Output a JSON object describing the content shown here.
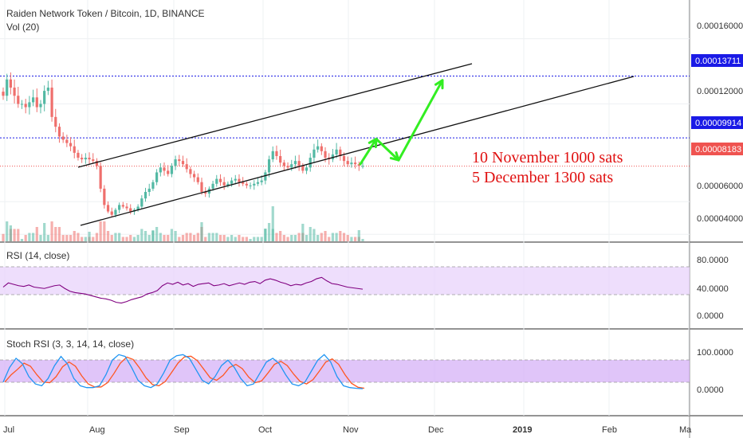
{
  "header": {
    "title": "Raiden Network Token / Bitcoin, 1D, BINANCE",
    "volume_label": "Vol (20)"
  },
  "colors": {
    "up": "#53b9a4",
    "down": "#ef6f6c",
    "level_line": "#1a1ae6",
    "price_badge": "#1a1ae6",
    "last_badge": "#ef5350",
    "rsi_line": "#800080",
    "rsi_band": "#e6ccff",
    "stoch_k": "#2196f3",
    "stoch_d": "#ff5722",
    "arrows": "#33ee22",
    "annotation": "#e01010"
  },
  "price_axis": {
    "ticks": [
      "0.00016000",
      "0.00012000",
      "0.00006000",
      "0.00004000"
    ],
    "tick_values": [
      0.00016,
      0.00012,
      6e-05,
      4e-05
    ]
  },
  "levels": [
    {
      "label": "0.00013711",
      "value": 0.00013711,
      "kind": "level"
    },
    {
      "label": "0.00009914",
      "value": 9.914e-05,
      "kind": "level"
    },
    {
      "label": "0.00008183",
      "value": 8.183e-05,
      "kind": "last"
    }
  ],
  "annotations": {
    "line1": "10 November 1000 sats",
    "line2": "5 December 1300 sats"
  },
  "rsi": {
    "label": "RSI (14, close)",
    "ticks": [
      "80.0000",
      "40.0000",
      "0.0000"
    ]
  },
  "stoch": {
    "label": "Stoch RSI (3, 3, 14, 14, close)",
    "ticks": [
      "100.0000",
      "0.0000"
    ]
  },
  "time_axis": {
    "labels": [
      "Jul",
      "Aug",
      "Sep",
      "Oct",
      "Nov",
      "Dec",
      "2019",
      "Feb",
      "Ma"
    ]
  },
  "chart_data": {
    "type": "candlestick",
    "title": "Raiden Network Token / Bitcoin, 1D, BINANCE",
    "x_range": [
      "Jul",
      "Ma"
    ],
    "y_range_btc": [
      3e-05,
      0.00017
    ],
    "close_approx": [
      0.000125,
      0.000135,
      0.00013,
      0.000125,
      0.00012,
      0.00012,
      0.000118,
      0.000121,
      0.000124,
      0.000118,
      0.00012,
      0.000128,
      0.00013,
      0.000112,
      0.000106,
      0.0001,
      9.8e-05,
      9.6e-05,
      9.4e-05,
      9e-05,
      8.7e-05,
      8.6e-05,
      8.7e-05,
      8.6e-05,
      8.5e-05,
      8.2e-05,
      6.8e-05,
      5.8e-05,
      5.4e-05,
      5.2e-05,
      5.5e-05,
      5.8e-05,
      5.7e-05,
      5.6e-05,
      5.4e-05,
      5.5e-05,
      5.7e-05,
      6.2e-05,
      6.6e-05,
      6.8e-05,
      7.2e-05,
      7.8e-05,
      8.1e-05,
      7.9e-05,
      7.7e-05,
      8.2e-05,
      8.6e-05,
      8.5e-05,
      8.3e-05,
      8e-05,
      7.7e-05,
      7.5e-05,
      7.2e-05,
      6.6e-05,
      6.5e-05,
      6.8e-05,
      7.1e-05,
      7.4e-05,
      7.2e-05,
      7e-05,
      7.1e-05,
      7.3e-05,
      7.4e-05,
      7.2e-05,
      7.1e-05,
      7e-05,
      7e-05,
      7.1e-05,
      7.2e-05,
      7.3e-05,
      7.8e-05,
      8.6e-05,
      9.1e-05,
      8.8e-05,
      8.4e-05,
      8.2e-05,
      8.1e-05,
      8.3e-05,
      8.5e-05,
      8.2e-05,
      7.9e-05,
      8.1e-05,
      8.7e-05,
      9.2e-05,
      9.4e-05,
      9.1e-05,
      8.7e-05,
      8.6e-05,
      8.9e-05,
      9.2e-05,
      8.8e-05,
      8.5e-05,
      8.3e-05,
      8.4e-05,
      8.3e-05,
      8.2e-05,
      8.2e-05
    ],
    "channel": {
      "upper": [
        [
          "Aug 1",
          7.35e-05
        ],
        [
          "Dec 10",
          0.0001395
        ]
      ],
      "lower": [
        [
          "Jul 22",
          4.3e-05
        ],
        [
          "Feb 9",
          0.000127
        ]
      ]
    },
    "projection_path": [
      [
        8.31e-05,
        "Nov 5"
      ],
      [
        9.85e-05,
        "Nov 9"
      ],
      [
        8.55e-05,
        "Nov 18"
      ],
      [
        0.0001345,
        "Nov 28"
      ]
    ],
    "rsi_approx": [
      50,
      56,
      54,
      52,
      51,
      53,
      50,
      49,
      48,
      50,
      52,
      53,
      48,
      44,
      42,
      41,
      40,
      38,
      36,
      34,
      33,
      31,
      28,
      27,
      29,
      32,
      34,
      36,
      40,
      42,
      45,
      52,
      56,
      54,
      57,
      53,
      55,
      51,
      54,
      55,
      56,
      52,
      53,
      55,
      52,
      54,
      56,
      54,
      57,
      58,
      55,
      60,
      62,
      60,
      57,
      55,
      52,
      54,
      53,
      56,
      58,
      62,
      64,
      59,
      55,
      54,
      52,
      50,
      49,
      48,
      47
    ],
    "rsi_range": [
      0,
      100
    ],
    "stoch_k_approx": [
      20,
      60,
      85,
      70,
      35,
      15,
      10,
      30,
      65,
      90,
      70,
      30,
      10,
      5,
      5,
      10,
      40,
      80,
      95,
      90,
      60,
      25,
      10,
      5,
      15,
      45,
      80,
      92,
      95,
      85,
      55,
      25,
      15,
      35,
      65,
      80,
      60,
      30,
      10,
      15,
      45,
      75,
      85,
      70,
      40,
      15,
      10,
      20,
      50,
      80,
      95,
      75,
      35,
      10,
      5,
      3,
      2
    ],
    "stoch_range": [
      0,
      100
    ]
  }
}
